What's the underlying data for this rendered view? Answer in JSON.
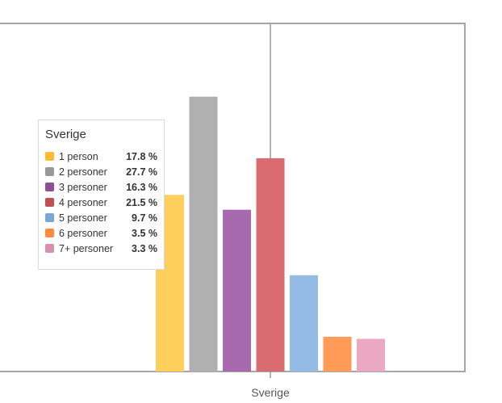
{
  "chart_data": {
    "type": "bar",
    "categories": [
      "Sverige"
    ],
    "series": [
      {
        "name": "1 person",
        "values": [
          17.8
        ],
        "color": "#ffcf5c"
      },
      {
        "name": "2 personer",
        "values": [
          27.7
        ],
        "color": "#b0b0b0"
      },
      {
        "name": "3 personer",
        "values": [
          16.3
        ],
        "color": "#a86aae"
      },
      {
        "name": "4 personer",
        "values": [
          21.5
        ],
        "color": "#d96b71"
      },
      {
        "name": "5 personer",
        "values": [
          9.7
        ],
        "color": "#93bbe3"
      },
      {
        "name": "6 personer",
        "values": [
          3.5
        ],
        "color": "#ff9b57"
      },
      {
        "name": "7+ personer",
        "values": [
          3.3
        ],
        "color": "#eaa8c2"
      }
    ],
    "ylim": [
      0,
      35
    ],
    "xlabel": "",
    "ylabel": "",
    "tooltip": {
      "title": "Sverige",
      "rows": [
        {
          "swatch": "#ffbb33",
          "label": "1 person",
          "value": "17.8 %"
        },
        {
          "swatch": "#999999",
          "label": "2 personer",
          "value": "27.7 %"
        },
        {
          "swatch": "#8e4f96",
          "label": "3 personer",
          "value": "16.3 %"
        },
        {
          "swatch": "#c05056",
          "label": "4 personer",
          "value": "21.5 %"
        },
        {
          "swatch": "#78a8d8",
          "label": "5 personer",
          "value": "9.7 %"
        },
        {
          "swatch": "#ff8a40",
          "label": "6 personer",
          "value": "3.5 %"
        },
        {
          "swatch": "#d98fae",
          "label": "7+ personer",
          "value": "3.3 %"
        }
      ]
    }
  }
}
